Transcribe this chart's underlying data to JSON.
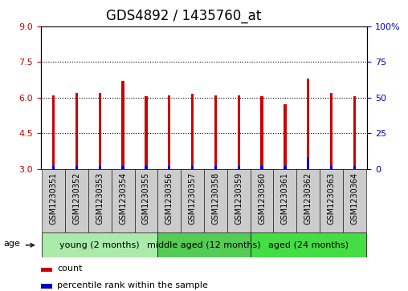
{
  "title": "GDS4892 / 1435760_at",
  "samples": [
    "GSM1230351",
    "GSM1230352",
    "GSM1230353",
    "GSM1230354",
    "GSM1230355",
    "GSM1230356",
    "GSM1230357",
    "GSM1230358",
    "GSM1230359",
    "GSM1230360",
    "GSM1230361",
    "GSM1230362",
    "GSM1230363",
    "GSM1230364"
  ],
  "count_values": [
    6.1,
    6.2,
    6.2,
    6.7,
    6.05,
    6.1,
    6.15,
    6.1,
    6.1,
    6.05,
    5.7,
    6.8,
    6.2,
    6.05
  ],
  "percentile_values": [
    2,
    2,
    2,
    2,
    2,
    2,
    2,
    2,
    2,
    2,
    2,
    8,
    2,
    2
  ],
  "ylim_left": [
    3,
    9
  ],
  "ylim_right": [
    0,
    100
  ],
  "yticks_left": [
    3,
    4.5,
    6,
    7.5,
    9
  ],
  "yticks_right": [
    0,
    25,
    50,
    75,
    100
  ],
  "bar_width": 0.12,
  "count_color": "#cc0000",
  "percentile_color": "#0000cc",
  "background_color": "#ffffff",
  "plot_bg_color": "#ffffff",
  "sample_box_color": "#cccccc",
  "groups": [
    {
      "label": "young (2 months)",
      "start": 0,
      "end": 5,
      "color": "#aaeaaa"
    },
    {
      "label": "middle aged (12 months)",
      "start": 5,
      "end": 9,
      "color": "#55cc55"
    },
    {
      "label": "aged (24 months)",
      "start": 9,
      "end": 14,
      "color": "#44dd44"
    }
  ],
  "age_label": "age",
  "legend_count_label": "count",
  "legend_percentile_label": "percentile rank within the sample",
  "title_fontsize": 12,
  "tick_fontsize": 8,
  "label_fontsize": 7,
  "group_fontsize": 8
}
